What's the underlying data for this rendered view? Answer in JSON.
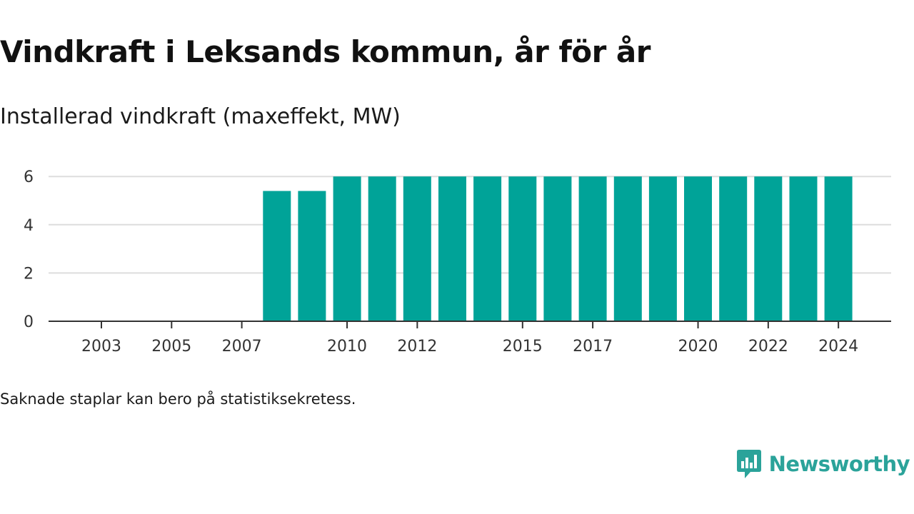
{
  "title": "Vindkraft i Leksands kommun, år för år",
  "subtitle": "Installerad vindkraft (maxeffekt, MW)",
  "note": "Saknade staplar kan bero på statistiksekretess.",
  "brand": {
    "name": "Newsworthy",
    "color": "#2ba39a"
  },
  "chart_data": {
    "type": "bar",
    "categories": [
      "2003",
      "2004",
      "2005",
      "2006",
      "2007",
      "2008",
      "2009",
      "2010",
      "2011",
      "2012",
      "2013",
      "2014",
      "2015",
      "2016",
      "2017",
      "2018",
      "2019",
      "2020",
      "2021",
      "2022",
      "2023",
      "2024"
    ],
    "values": [
      0,
      0,
      0,
      0,
      0,
      5.4,
      5.4,
      6,
      6,
      6,
      6,
      6,
      6,
      6,
      6,
      6,
      6,
      6,
      6,
      6,
      6,
      6
    ],
    "xtick_labels": [
      "2003",
      "2005",
      "2007",
      "2010",
      "2012",
      "2015",
      "2017",
      "2020",
      "2022",
      "2024"
    ],
    "yticks": [
      0,
      2,
      4,
      6
    ],
    "ylim": [
      0,
      6.6
    ],
    "bar_color": "#00a398",
    "grid": true,
    "legend": "none"
  }
}
